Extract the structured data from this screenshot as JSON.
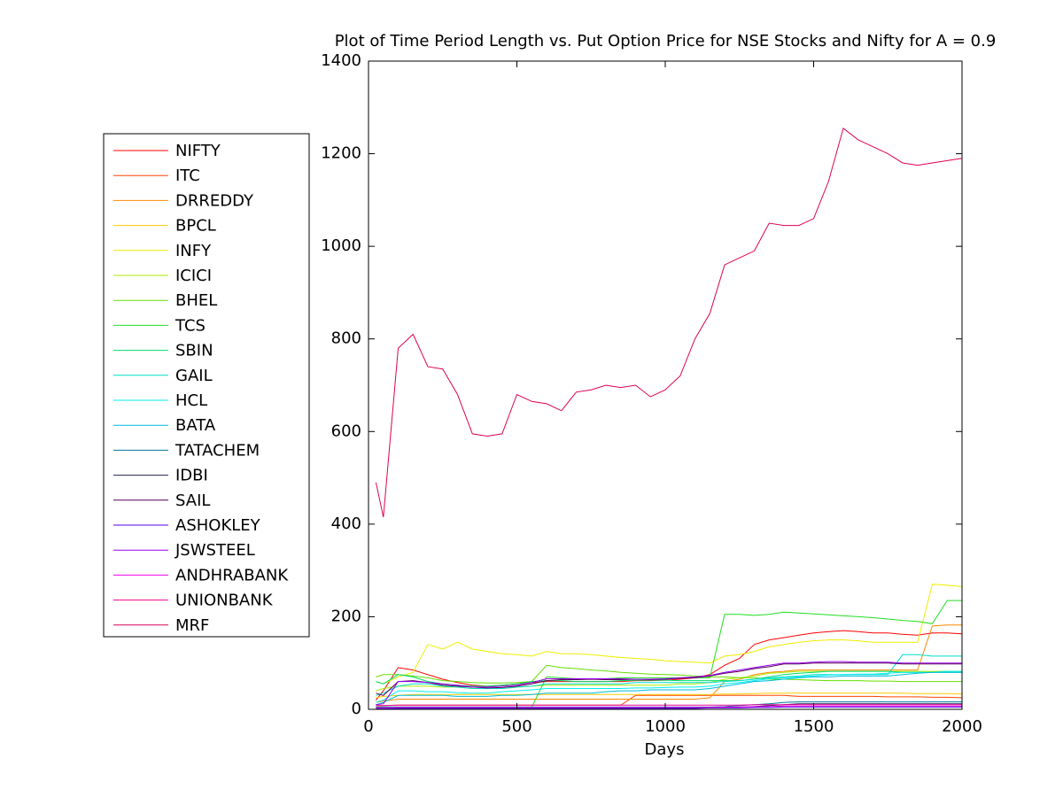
{
  "chart_data": {
    "type": "line",
    "title": "Plot of Time Period Length vs. Put Option Price for NSE Stocks and Nifty for A = 0.9",
    "x_label": "Days",
    "x": [
      25,
      50,
      100,
      150,
      200,
      250,
      300,
      350,
      400,
      450,
      500,
      550,
      600,
      650,
      700,
      750,
      800,
      850,
      900,
      950,
      1000,
      1050,
      1100,
      1150,
      1200,
      1250,
      1300,
      1350,
      1400,
      1450,
      1500,
      1550,
      1600,
      1650,
      1700,
      1750,
      1800,
      1850,
      1900,
      1950,
      2000
    ],
    "xlim": [
      0,
      2000
    ],
    "xticks": [
      0,
      500,
      1000,
      1500,
      2000
    ],
    "ylim": [
      0,
      1400
    ],
    "yticks": [
      0,
      200,
      400,
      600,
      800,
      1000,
      1200,
      1400
    ],
    "legend": "outside-left",
    "series": [
      {
        "name": "NIFTY",
        "color": "#ff0000",
        "values": [
          20,
          40,
          90,
          85,
          75,
          65,
          58,
          52,
          50,
          52,
          55,
          58,
          60,
          60,
          60,
          60,
          60,
          60,
          62,
          62,
          63,
          65,
          68,
          75,
          95,
          110,
          140,
          150,
          155,
          160,
          165,
          168,
          170,
          168,
          165,
          165,
          162,
          160,
          165,
          165,
          163
        ]
      },
      {
        "name": "ITC",
        "color": "#ff4400",
        "values": [
          8,
          8,
          9,
          9,
          9,
          9,
          9,
          9,
          9,
          9,
          9,
          9,
          9,
          9,
          9,
          9,
          9,
          9,
          30,
          30,
          30,
          30,
          30,
          30,
          30,
          30,
          30,
          30,
          30,
          28,
          28,
          28,
          28,
          28,
          28,
          27,
          27,
          27,
          26,
          26,
          25
        ]
      },
      {
        "name": "DRREDDY",
        "color": "#ff8800",
        "values": [
          15,
          18,
          22,
          22,
          22,
          22,
          22,
          22,
          22,
          22,
          22,
          22,
          22,
          22,
          22,
          22,
          22,
          22,
          22,
          22,
          22,
          22,
          22,
          25,
          60,
          65,
          75,
          80,
          82,
          85,
          85,
          85,
          85,
          85,
          85,
          85,
          85,
          85,
          180,
          182,
          182
        ]
      },
      {
        "name": "BPCL",
        "color": "#ffcc00",
        "values": [
          25,
          28,
          30,
          32,
          32,
          32,
          32,
          32,
          32,
          32,
          32,
          32,
          32,
          32,
          32,
          32,
          32,
          32,
          32,
          32,
          32,
          32,
          32,
          32,
          33,
          33,
          34,
          35,
          35,
          35,
          35,
          35,
          35,
          35,
          35,
          35,
          35,
          34,
          34,
          34,
          33
        ]
      },
      {
        "name": "INFY",
        "color": "#eeee00",
        "values": [
          60,
          55,
          70,
          80,
          140,
          130,
          145,
          130,
          125,
          120,
          118,
          115,
          125,
          120,
          120,
          118,
          115,
          112,
          110,
          108,
          105,
          103,
          102,
          100,
          115,
          118,
          125,
          135,
          140,
          145,
          148,
          150,
          150,
          148,
          145,
          145,
          145,
          145,
          270,
          268,
          265
        ]
      },
      {
        "name": "ICICI",
        "color": "#aaee00",
        "values": [
          40,
          45,
          50,
          50,
          50,
          48,
          48,
          45,
          45,
          45,
          48,
          50,
          52,
          52,
          52,
          52,
          52,
          52,
          52,
          52,
          52,
          55,
          55,
          58,
          65,
          68,
          72,
          78,
          80,
          82,
          82,
          82,
          82,
          82,
          82,
          82,
          82,
          82,
          82,
          82,
          82
        ]
      },
      {
        "name": "BHEL",
        "color": "#66dd00",
        "values": [
          70,
          75,
          75,
          72,
          68,
          62,
          60,
          58,
          57,
          57,
          58,
          60,
          95,
          90,
          88,
          85,
          83,
          80,
          78,
          76,
          75,
          74,
          72,
          70,
          70,
          68,
          68,
          65,
          65,
          64,
          63,
          62,
          62,
          62,
          61,
          61,
          60,
          60,
          60,
          60,
          60
        ]
      },
      {
        "name": "TCS",
        "color": "#22dd22",
        "values": [
          5,
          5,
          5,
          5,
          5,
          5,
          5,
          5,
          5,
          5,
          5,
          5,
          70,
          68,
          66,
          66,
          66,
          68,
          68,
          68,
          68,
          68,
          68,
          68,
          205,
          205,
          203,
          205,
          210,
          208,
          206,
          204,
          202,
          200,
          198,
          195,
          192,
          190,
          185,
          235,
          235
        ]
      },
      {
        "name": "SBIN",
        "color": "#00dd66",
        "values": [
          60,
          55,
          75,
          70,
          60,
          55,
          52,
          50,
          50,
          52,
          55,
          60,
          62,
          62,
          60,
          60,
          60,
          62,
          63,
          63,
          63,
          62,
          62,
          62,
          62,
          62,
          65,
          70,
          75,
          78,
          80,
          82,
          82,
          82,
          82,
          82,
          80,
          80,
          80,
          80,
          80
        ]
      },
      {
        "name": "GAIL",
        "color": "#00ddcc",
        "values": [
          30,
          35,
          50,
          55,
          55,
          50,
          48,
          45,
          45,
          45,
          48,
          50,
          55,
          55,
          55,
          55,
          55,
          55,
          58,
          58,
          58,
          58,
          58,
          58,
          60,
          62,
          65,
          68,
          70,
          72,
          75,
          75,
          75,
          75,
          75,
          75,
          118,
          118,
          115,
          115,
          115
        ]
      },
      {
        "name": "HCL",
        "color": "#00eeee",
        "values": [
          15,
          20,
          40,
          40,
          38,
          38,
          36,
          35,
          35,
          38,
          40,
          42,
          45,
          45,
          45,
          45,
          45,
          45,
          46,
          46,
          47,
          48,
          48,
          50,
          55,
          58,
          62,
          66,
          68,
          70,
          72,
          74,
          75,
          76,
          76,
          78,
          80,
          80,
          80,
          82,
          82
        ]
      },
      {
        "name": "BATA",
        "color": "#00bbdd",
        "values": [
          10,
          15,
          30,
          30,
          30,
          30,
          28,
          28,
          28,
          30,
          30,
          32,
          35,
          35,
          35,
          35,
          38,
          40,
          40,
          42,
          42,
          42,
          42,
          45,
          50,
          55,
          60,
          62,
          65,
          68,
          70,
          70,
          72,
          72,
          72,
          72,
          75,
          78,
          80,
          80,
          80
        ]
      },
      {
        "name": "TATACHEM",
        "color": "#007799",
        "values": [
          5,
          5,
          5,
          5,
          5,
          5,
          5,
          5,
          5,
          5,
          5,
          5,
          5,
          5,
          5,
          5,
          5,
          5,
          5,
          5,
          5,
          5,
          5,
          5,
          6,
          8,
          10,
          12,
          15,
          16,
          16,
          16,
          16,
          16,
          16,
          16,
          16,
          16,
          16,
          16,
          16
        ]
      },
      {
        "name": "IDBI",
        "color": "#222255",
        "values": [
          3,
          3,
          3,
          3,
          3,
          3,
          3,
          3,
          3,
          3,
          3,
          3,
          3,
          3,
          3,
          3,
          3,
          3,
          3,
          3,
          3,
          3,
          3,
          3,
          4,
          5,
          6,
          8,
          10,
          12,
          12,
          12,
          12,
          12,
          12,
          12,
          12,
          12,
          12,
          12,
          12
        ]
      },
      {
        "name": "SAIL",
        "color": "#550055",
        "values": [
          35,
          30,
          60,
          62,
          58,
          52,
          50,
          48,
          46,
          47,
          50,
          55,
          62,
          64,
          64,
          65,
          64,
          64,
          65,
          64,
          65,
          67,
          68,
          72,
          78,
          82,
          88,
          92,
          98,
          98,
          100,
          100,
          100,
          100,
          100,
          100,
          98,
          98,
          98,
          98,
          98
        ]
      },
      {
        "name": "ASHOKLEY",
        "color": "#5500ee",
        "values": [
          2,
          2,
          2,
          2,
          2,
          2,
          2,
          2,
          2,
          2,
          2,
          2,
          2,
          2,
          2,
          2,
          2,
          2,
          2,
          2,
          2,
          2,
          2,
          3,
          3,
          3,
          4,
          4,
          5,
          5,
          5,
          5,
          5,
          5,
          5,
          5,
          5,
          5,
          5,
          5,
          5
        ]
      },
      {
        "name": "JSWSTEEL",
        "color": "#9900ee",
        "values": [
          10,
          12,
          60,
          60,
          58,
          55,
          52,
          48,
          48,
          50,
          52,
          58,
          66,
          66,
          66,
          66,
          66,
          66,
          65,
          65,
          66,
          68,
          70,
          73,
          80,
          85,
          90,
          95,
          100,
          100,
          102,
          103,
          103,
          102,
          102,
          102,
          100,
          100,
          100,
          100,
          100
        ]
      },
      {
        "name": "ANDHRABANK",
        "color": "#ee00ee",
        "values": [
          3,
          3,
          4,
          4,
          4,
          4,
          4,
          4,
          4,
          4,
          4,
          4,
          4,
          4,
          4,
          4,
          4,
          4,
          4,
          4,
          4,
          4,
          4,
          4,
          5,
          5,
          6,
          6,
          7,
          7,
          7,
          7,
          7,
          7,
          7,
          7,
          7,
          7,
          7,
          7,
          7
        ]
      },
      {
        "name": "UNIONBANK",
        "color": "#ee0099",
        "values": [
          8,
          8,
          9,
          9,
          9,
          9,
          9,
          9,
          9,
          9,
          9,
          9,
          9,
          9,
          9,
          9,
          9,
          9,
          9,
          9,
          9,
          9,
          9,
          9,
          9,
          9,
          10,
          10,
          10,
          10,
          10,
          10,
          10,
          10,
          10,
          10,
          10,
          10,
          10,
          10,
          10
        ]
      },
      {
        "name": "MRF",
        "color": "#dd0055",
        "values": [
          490,
          415,
          780,
          810,
          740,
          735,
          680,
          595,
          590,
          595,
          680,
          665,
          660,
          645,
          685,
          690,
          700,
          695,
          700,
          675,
          690,
          720,
          800,
          855,
          960,
          975,
          990,
          1050,
          1045,
          1045,
          1060,
          1140,
          1255,
          1230,
          1215,
          1200,
          1180,
          1175,
          1180,
          1185,
          1190
        ]
      }
    ]
  }
}
